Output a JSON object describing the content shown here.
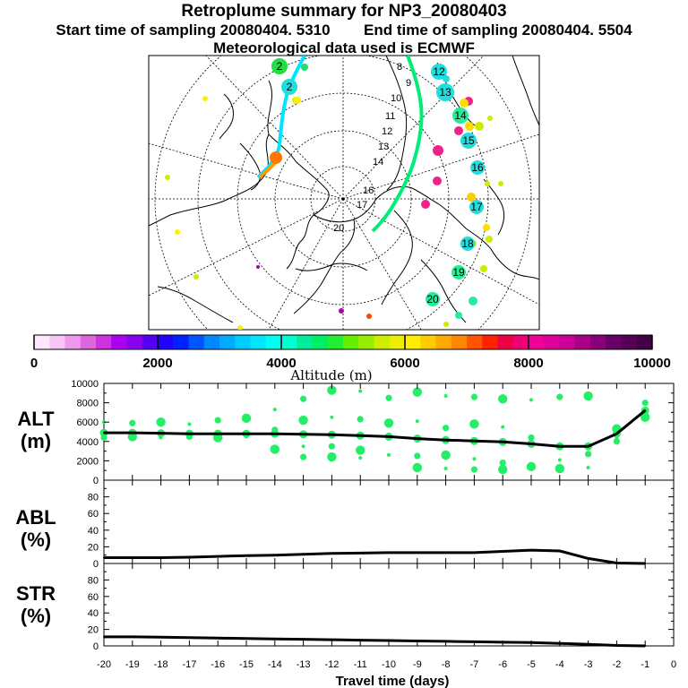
{
  "header": {
    "title": "Retroplume summary for NP3_20080403",
    "line2_start": "Start time of sampling 20080404.  5310",
    "line2_end": "End time of sampling 20080404.  5504",
    "line3": "Meteorological data used is ECMWF"
  },
  "colors": {
    "trajectory_cyan": "#00e5ff",
    "trajectory_green": "#00ee77",
    "alt_dots": "#22ee66",
    "line": "#000000"
  },
  "map": {
    "numbered_markers": [
      {
        "label": "2",
        "color": "#22dd44"
      },
      {
        "label": "2",
        "color": "#22dddd"
      },
      {
        "label": "12",
        "color": "#22dddd"
      },
      {
        "label": "13",
        "color": "#22dddd"
      },
      {
        "label": "14",
        "color": "#22ee99"
      },
      {
        "label": "15",
        "color": "#22dddd"
      },
      {
        "label": "16",
        "color": "#22dddd"
      },
      {
        "label": "17",
        "color": "#22dddd"
      },
      {
        "label": "18",
        "color": "#22dddd"
      },
      {
        "label": "19",
        "color": "#22ee99"
      },
      {
        "label": "20",
        "color": "#22ee99"
      }
    ],
    "path_labels": [
      "8",
      "9",
      "10",
      "11",
      "12",
      "13",
      "14",
      "16",
      "17",
      "20"
    ]
  },
  "colorbar": {
    "tick_labels": [
      "0",
      "2000",
      "4000",
      "6000",
      "8000",
      "10000"
    ],
    "title": "Altitude (m)"
  },
  "panels": {
    "alt": {
      "label_line1": "ALT",
      "label_line2": "(m)"
    },
    "abl": {
      "label_line1": "ABL",
      "label_line2": "(%)"
    },
    "str": {
      "label_line1": "STR",
      "label_line2": "(%)"
    }
  },
  "chart_data": [
    {
      "type": "line",
      "name": "ALT",
      "ylabel": "ALT (m)",
      "x": [
        -20,
        -19,
        -18,
        -17,
        -16,
        -15,
        -14,
        -13,
        -12,
        -11,
        -10,
        -9,
        -8,
        -7,
        -6,
        -5,
        -4,
        -3,
        -2,
        -1
      ],
      "values": [
        4900,
        4900,
        4850,
        4800,
        4800,
        4800,
        4800,
        4750,
        4700,
        4600,
        4500,
        4300,
        4150,
        4050,
        3950,
        3750,
        3500,
        3500,
        4800,
        7200
      ],
      "ylim": [
        0,
        10000
      ],
      "yticks": [
        0,
        2000,
        4000,
        6000,
        8000,
        10000
      ]
    },
    {
      "type": "line",
      "name": "ABL",
      "ylabel": "ABL (%)",
      "x": [
        -20,
        -19,
        -18,
        -17,
        -16,
        -15,
        -14,
        -13,
        -12,
        -11,
        -10,
        -9,
        -8,
        -7,
        -6,
        -5,
        -4,
        -3,
        -2,
        -1
      ],
      "values": [
        7,
        7,
        7,
        7.5,
        8.5,
        9.5,
        10,
        11,
        12,
        12.5,
        13,
        13,
        13,
        13,
        14.5,
        16,
        15,
        6,
        0.5,
        0
      ],
      "ylim": [
        0,
        100
      ],
      "yticks": [
        0,
        20,
        40,
        60,
        80
      ]
    },
    {
      "type": "line",
      "name": "STR",
      "ylabel": "STR (%)",
      "xlabel": "Travel time (days)",
      "x": [
        -20,
        -19,
        -18,
        -17,
        -16,
        -15,
        -14,
        -13,
        -12,
        -11,
        -10,
        -9,
        -8,
        -7,
        -6,
        -5,
        -4,
        -3,
        -2,
        -1
      ],
      "values": [
        11,
        11,
        10.5,
        10,
        9.5,
        9,
        8.5,
        8,
        7.5,
        7,
        6.5,
        6,
        5.5,
        5,
        4.5,
        4,
        3,
        2,
        0.5,
        0
      ],
      "ylim": [
        0,
        100
      ],
      "yticks": [
        0,
        20,
        40,
        60,
        80
      ],
      "xticks": [
        -20,
        -19,
        -18,
        -17,
        -16,
        -15,
        -14,
        -13,
        -12,
        -11,
        -10,
        -9,
        -8,
        -7,
        -6,
        -5,
        -4,
        -3,
        -2,
        -1,
        0
      ]
    }
  ]
}
